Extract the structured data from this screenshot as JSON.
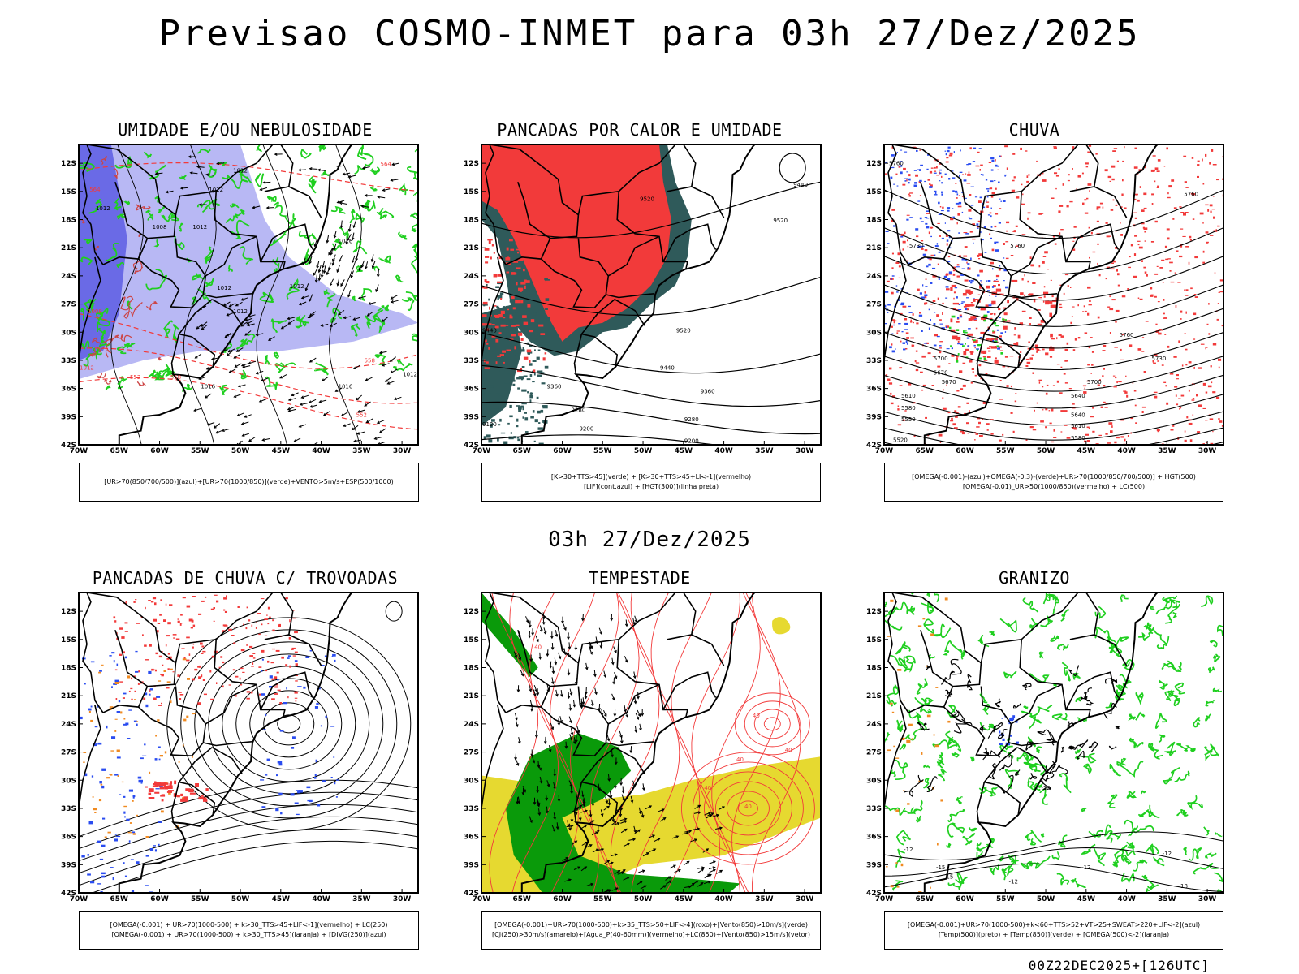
{
  "header": {
    "title": "Previsao COSMO-INMET  para 03h 27/Dez/2025",
    "mid_title": "03h 27/Dez/2025",
    "footer": "00Z22DEC2025+[126UTC]"
  },
  "axes": {
    "lat_ticks": [
      "12S",
      "15S",
      "18S",
      "21S",
      "24S",
      "27S",
      "30S",
      "33S",
      "36S",
      "39S",
      "42S"
    ],
    "lon_ticks": [
      "70W",
      "65W",
      "60W",
      "55W",
      "50W",
      "45W",
      "40W",
      "35W",
      "30W"
    ]
  },
  "colors": {
    "red": "#f23a3a",
    "green": "#1fcf1f",
    "blue": "#2a4cf0",
    "lightpurple": "#b8b8f4",
    "purple": "#6a6ae6",
    "darkteal": "#2f5a5a",
    "yellow": "#e6d930",
    "orange": "#f08a20",
    "darkgreen": "#0a9a0a"
  },
  "panels": [
    {
      "id": "umidade",
      "title": "UMIDADE E/OU NEBULOSIDADE",
      "legend": [
        "[UR>70(850/700/500)](azul)+[UR>70(1000/850)](verde)+VENTO>5m/s+ESP(500/1000)"
      ],
      "contour_labels": [
        "1012",
        "1012",
        "1012",
        "1008",
        "1012",
        "1012",
        "1016",
        "1012",
        "1012",
        "1016",
        "1016",
        "1012",
        "1008",
        "1012",
        "564",
        "558",
        "552",
        "558",
        "552",
        "564"
      ]
    },
    {
      "id": "pancadas-calor",
      "title": "PANCADAS POR CALOR E UMIDADE",
      "legend": [
        "[K>30+TTS>45](verde) + [K>30+TTS>45+LI<-1](vermelho)",
        "[LIF](cont.azul) + [HGT(300)](linha preta)"
      ],
      "contour_labels": [
        "9440",
        "9520",
        "9520",
        "9520",
        "9440",
        "9440",
        "9360",
        "9360",
        "9280",
        "9280",
        "9200",
        "9200",
        "9120"
      ]
    },
    {
      "id": "chuva",
      "title": "CHUVA",
      "legend": [
        "[OMEGA(-0.001)-(azul)+OMEGA(-0.3)-(verde)+UR>70(1000/850/700/500)] + HGT(500)",
        "[OMEGA(-0.01)_UR>50(1000/850)(vermelho) + LC(500)"
      ],
      "contour_labels": [
        "5760",
        "5760",
        "5730",
        "5760",
        "5760",
        "5700",
        "5730",
        "5700",
        "5670",
        "5640",
        "5610",
        "5580",
        "5550",
        "5520",
        "5670",
        "5640",
        "5610",
        "5580"
      ]
    },
    {
      "id": "pancadas-trovoadas",
      "title": "PANCADAS DE CHUVA C/ TROVOADAS",
      "legend": [
        "[OMEGA(-0.001) + UR>70(1000-500) + k>30_TTS>45+LIF<-1](vermelho) + LC(250)",
        "[OMEGA(-0.001) + UR>70(1000-500) + k>30_TTS>45](laranja) + [DIVG(250)](azul)"
      ],
      "contour_labels": []
    },
    {
      "id": "tempestade",
      "title": "TEMPESTADE",
      "legend": [
        "[OMEGA(-0.001)+UR>70(1000-500)+k>35_TTS>50+LIF<-4](roxo)+[Vento(850)>10m/s](verde)",
        "[CJ(250)>30m/s](amarelo)+[Agua_P(40-60mm)](vermelho)+LC(850)+[Vento(850)>15m/s](vetor)"
      ],
      "contour_labels": [
        "40",
        "40",
        "40",
        "40",
        "40",
        "40"
      ]
    },
    {
      "id": "granizo",
      "title": "GRANIZO",
      "legend": [
        "[OMEGA(-0.001)+UR>70(1000-500)+k<60+TTS>52+VT>25+SWEAT>220+LIF<-2](azul)",
        "[Temp(500)](preto) + [Temp(850)](verde) + [OMEGA(500)<-2](laranja)"
      ],
      "contour_labels": [
        "-12",
        "-15",
        "-12",
        "-12",
        "-15",
        "-18",
        "-12",
        "-12"
      ]
    }
  ]
}
